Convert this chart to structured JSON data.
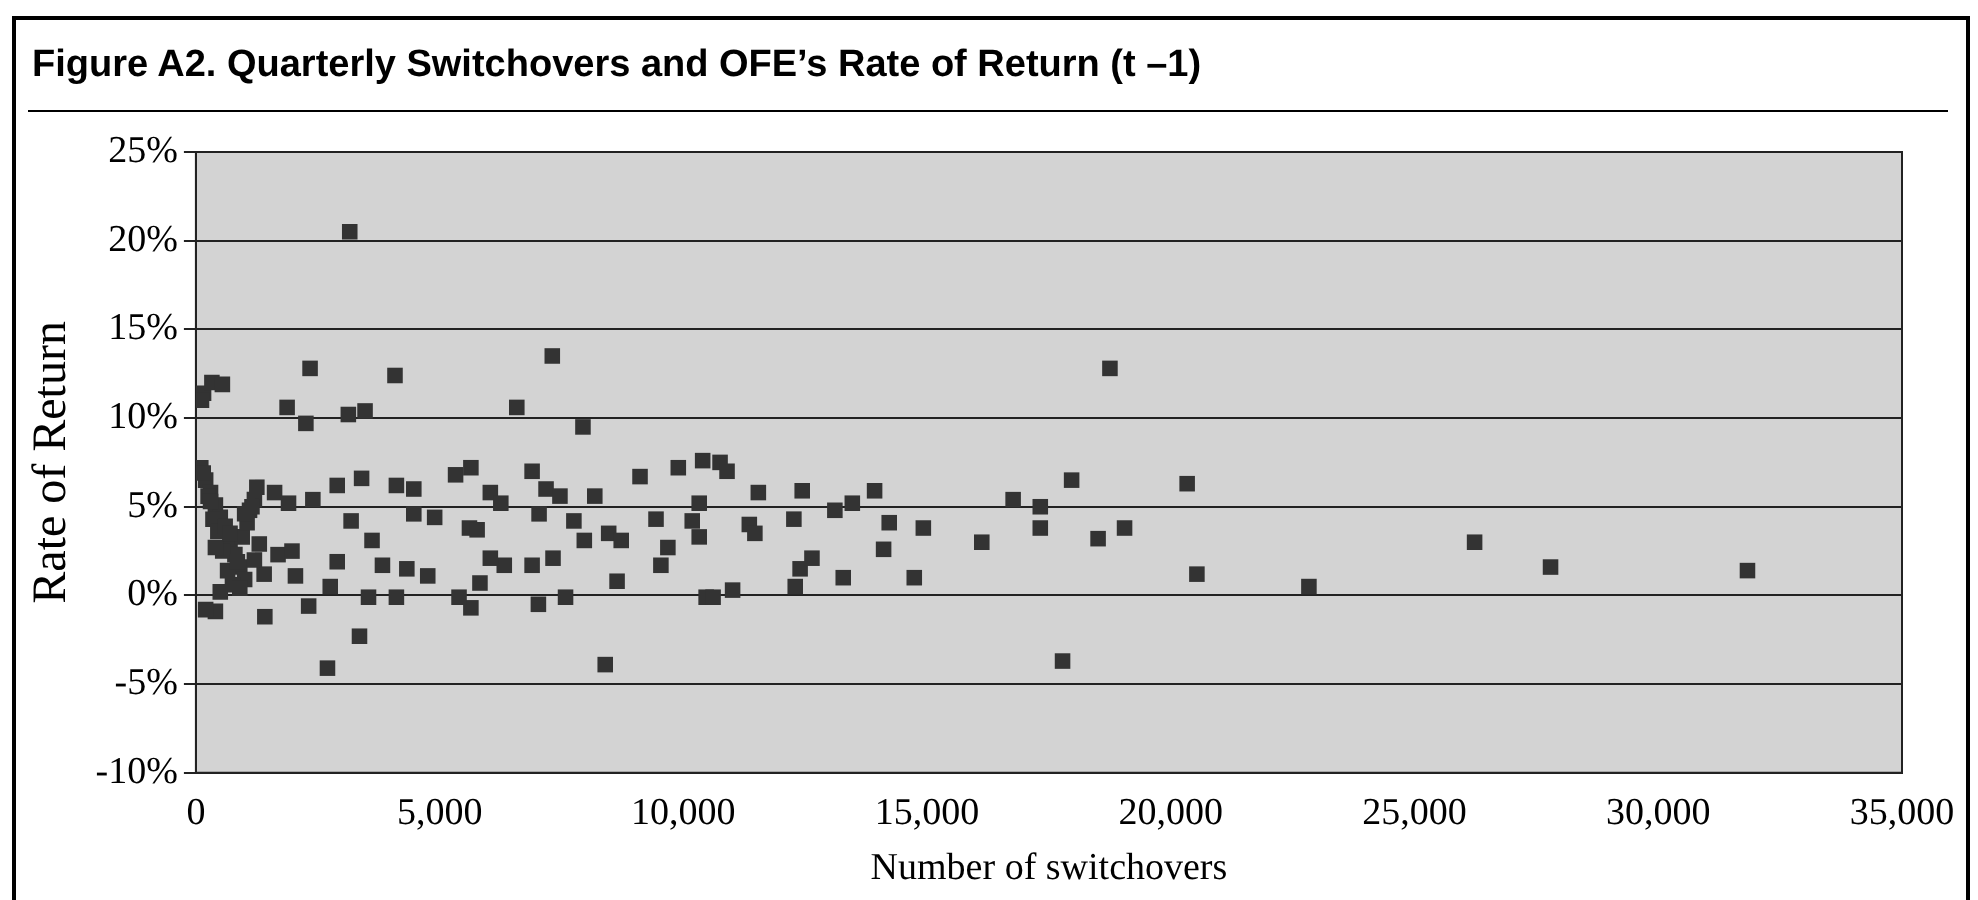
{
  "chart_data": {
    "type": "scatter",
    "title": "Figure A2.  Quarterly Switchovers and OFE’s Rate of Return (t –1)",
    "xlabel": "Number of switchovers",
    "ylabel": "Rate of Return",
    "xlim": [
      0,
      35000
    ],
    "xticks": [
      0,
      {
        "value": 5000,
        "label": "5,000"
      },
      {
        "value": 10000,
        "label": "10,000"
      },
      {
        "value": 15000,
        "label": "15,000"
      },
      {
        "value": 20000,
        "label": "20,000"
      },
      {
        "value": 25000,
        "label": "25,000"
      },
      {
        "value": 30000,
        "label": "30,000"
      },
      {
        "value": 35000,
        "label": "35,000"
      }
    ],
    "ylim": [
      -10,
      25
    ],
    "yticks": [
      {
        "value": -10,
        "label": "-10%"
      },
      {
        "value": -5,
        "label": "-5%"
      },
      {
        "value": 0,
        "label": "0%"
      },
      {
        "value": 5,
        "label": "5%"
      },
      {
        "value": 10,
        "label": "10%"
      },
      {
        "value": 15,
        "label": "15%"
      },
      {
        "value": 20,
        "label": "20%"
      },
      {
        "value": 25,
        "label": "25%"
      }
    ],
    "grid": "y",
    "legend": false,
    "marker": "square",
    "series": [
      {
        "color": "#333333",
        "x": [
          3156,
          157,
          328,
          543,
          114,
          2342,
          4084,
          7311,
          1871,
          2256,
          3127,
          3470,
          6583,
          7940,
          2699,
          3356,
          8397,
          1414,
          400,
          2313,
          5641,
          7026,
          7583,
          8640,
          10467,
          5398,
          5827,
          3541,
          4113,
          2756,
          5327,
          5641,
          6040,
          6255,
          6897,
          7183,
          7468,
          8183,
          7040,
          7754,
          7968,
          8468,
          8725,
          9111,
          9439,
          9682,
          9539,
          9896,
          10396,
          10325,
          10325,
          7326,
          6897,
          6326,
          6040,
          5612,
          5769,
          4470,
          4898,
          4113,
          4470,
          3399,
          2899,
          2399,
          4327,
          4756,
          3827,
          2899,
          3613,
          3184,
          1685,
          1971,
          2042,
          1614,
          1900,
          10753,
          10896,
          10182,
          10610,
          11538,
          11353,
          11467,
          12438,
          12267,
          11010,
          12295,
          12395,
          12638,
          13108,
          13466,
          13923,
          13280,
          14223,
          14108,
          14923,
          14737,
          16122,
          16765,
          17322,
          17322,
          17965,
          17779,
          18508,
          19051,
          18751,
          20335,
          20535,
          22833,
          26232,
          27790,
          31830,
          100,
          200,
          300,
          400,
          500,
          700,
          800,
          900,
          1000,
          1100,
          1200,
          1300,
          1400,
          150,
          250,
          350,
          450,
          550,
          650,
          750,
          850,
          950,
          1050,
          1150,
          1250,
          200,
          400,
          600,
          1000,
          1200,
          300,
          500,
          700,
          900
        ],
        "values": [
          20.5,
          11.4,
          12.0,
          11.9,
          11.0,
          12.8,
          12.4,
          13.5,
          10.6,
          9.7,
          10.2,
          10.4,
          10.6,
          9.5,
          -4.1,
          -2.3,
          -3.9,
          -1.2,
          -0.9,
          -0.6,
          -0.7,
          -0.5,
          -0.1,
          0.8,
          -0.1,
          -0.1,
          0.7,
          -0.1,
          -0.1,
          0.5,
          6.8,
          7.2,
          5.8,
          5.2,
          7.0,
          6.0,
          5.6,
          5.6,
          4.6,
          4.2,
          3.1,
          3.5,
          3.1,
          6.7,
          4.3,
          2.7,
          1.7,
          7.2,
          7.6,
          5.2,
          3.3,
          2.1,
          1.7,
          1.7,
          2.1,
          3.8,
          3.7,
          4.6,
          4.4,
          6.2,
          6.0,
          6.6,
          6.2,
          5.4,
          1.5,
          1.1,
          1.7,
          1.9,
          3.1,
          4.2,
          2.3,
          2.5,
          1.1,
          5.8,
          5.2,
          7.5,
          7.0,
          4.2,
          -0.1,
          5.8,
          4.0,
          3.5,
          5.9,
          4.3,
          0.3,
          0.5,
          1.5,
          2.1,
          4.8,
          5.2,
          5.9,
          1.0,
          4.1,
          2.6,
          3.8,
          1.0,
          3.0,
          5.4,
          5.0,
          3.8,
          6.5,
          -3.7,
          3.2,
          3.8,
          12.8,
          6.3,
          1.2,
          0.5,
          3.0,
          1.6,
          1.4,
          7.2,
          6.5,
          5.8,
          5.1,
          4.4,
          3.0,
          2.3,
          1.6,
          0.9,
          4.8,
          5.4,
          2.9,
          1.2,
          6.9,
          5.6,
          4.3,
          3.6,
          2.5,
          1.4,
          0.6,
          1.9,
          3.3,
          4.1,
          5.0,
          6.1,
          -0.8,
          2.7,
          3.9,
          4.6,
          2.0,
          5.3,
          0.2,
          3.5,
          0.4
        ]
      }
    ]
  }
}
